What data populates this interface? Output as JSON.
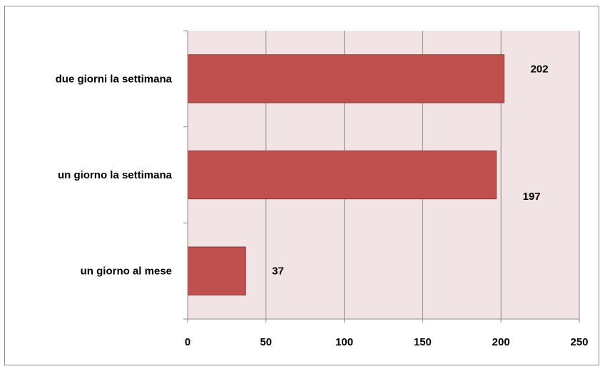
{
  "chart_data": {
    "type": "bar",
    "orientation": "horizontal",
    "categories": [
      "due giorni la settimana",
      "un giorno la settimana",
      "un giorno al mese"
    ],
    "values": [
      202,
      197,
      37
    ],
    "xlim": [
      0,
      250
    ],
    "xticks": [
      "0",
      "50",
      "100",
      "150",
      "200",
      "250"
    ],
    "data_labels": [
      "202",
      "197",
      "37"
    ],
    "title": "",
    "xlabel": "",
    "ylabel": "",
    "grid": true,
    "legend": "none",
    "colors": {
      "bar_fill": "#c0504d",
      "bar_stroke": "#8c3836",
      "plot_background": "#f2e4e4",
      "gridline": "#8c8c8c"
    }
  }
}
